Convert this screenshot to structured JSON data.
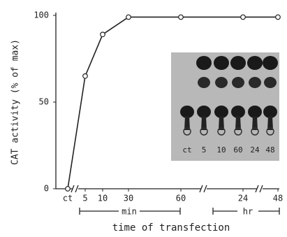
{
  "chart_data": {
    "type": "line",
    "categories": [
      "ct",
      "5",
      "10",
      "30",
      "60",
      "24",
      "48"
    ],
    "values": [
      0,
      65,
      89,
      99,
      99,
      99,
      99
    ],
    "color": "#222222",
    "ylim": [
      0,
      100
    ],
    "yticks": [
      0,
      50,
      100
    ],
    "ylabel": "CAT activity (% of max)",
    "xlabel": "time of transfection",
    "group_labels": [
      "min",
      "hr"
    ]
  },
  "inset": {
    "lane_labels": [
      "ct",
      "5",
      "10",
      "60",
      "24",
      "48"
    ]
  }
}
